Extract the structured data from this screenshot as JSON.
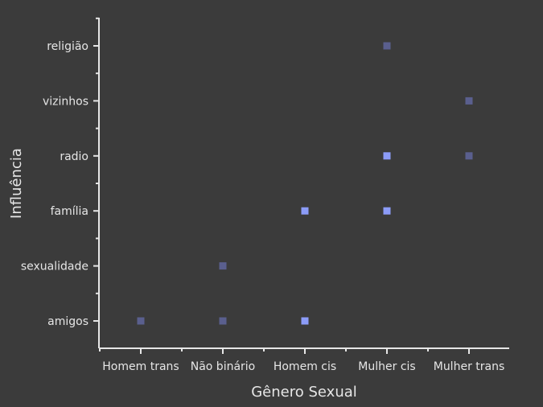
{
  "chart_data": {
    "type": "scatter",
    "title": "",
    "xlabel": "Gênero Sexual",
    "ylabel": "Influência",
    "x_categories": [
      "Homem trans",
      "Não binário",
      "Homem cis",
      "Mulher cis",
      "Mulher trans"
    ],
    "y_categories": [
      "amigos",
      "sexualidade",
      "família",
      "radio",
      "vizinhos",
      "religião"
    ],
    "grid": false,
    "legend": "none",
    "color_scale": {
      "low": "#5a5f8e",
      "high": "#8c9cf8"
    },
    "points": [
      {
        "x": "Homem trans",
        "y": "amigos",
        "intensity": 1
      },
      {
        "x": "Não binário",
        "y": "amigos",
        "intensity": 1
      },
      {
        "x": "Não binário",
        "y": "sexualidade",
        "intensity": 1
      },
      {
        "x": "Homem cis",
        "y": "amigos",
        "intensity": 2
      },
      {
        "x": "Homem cis",
        "y": "família",
        "intensity": 2
      },
      {
        "x": "Mulher cis",
        "y": "família",
        "intensity": 2
      },
      {
        "x": "Mulher cis",
        "y": "radio",
        "intensity": 2
      },
      {
        "x": "Mulher cis",
        "y": "religião",
        "intensity": 1
      },
      {
        "x": "Mulher trans",
        "y": "radio",
        "intensity": 1
      },
      {
        "x": "Mulher trans",
        "y": "vizinhos",
        "intensity": 1
      }
    ],
    "axis_color": "#e6e6e6",
    "background": "#3b3b3b"
  }
}
